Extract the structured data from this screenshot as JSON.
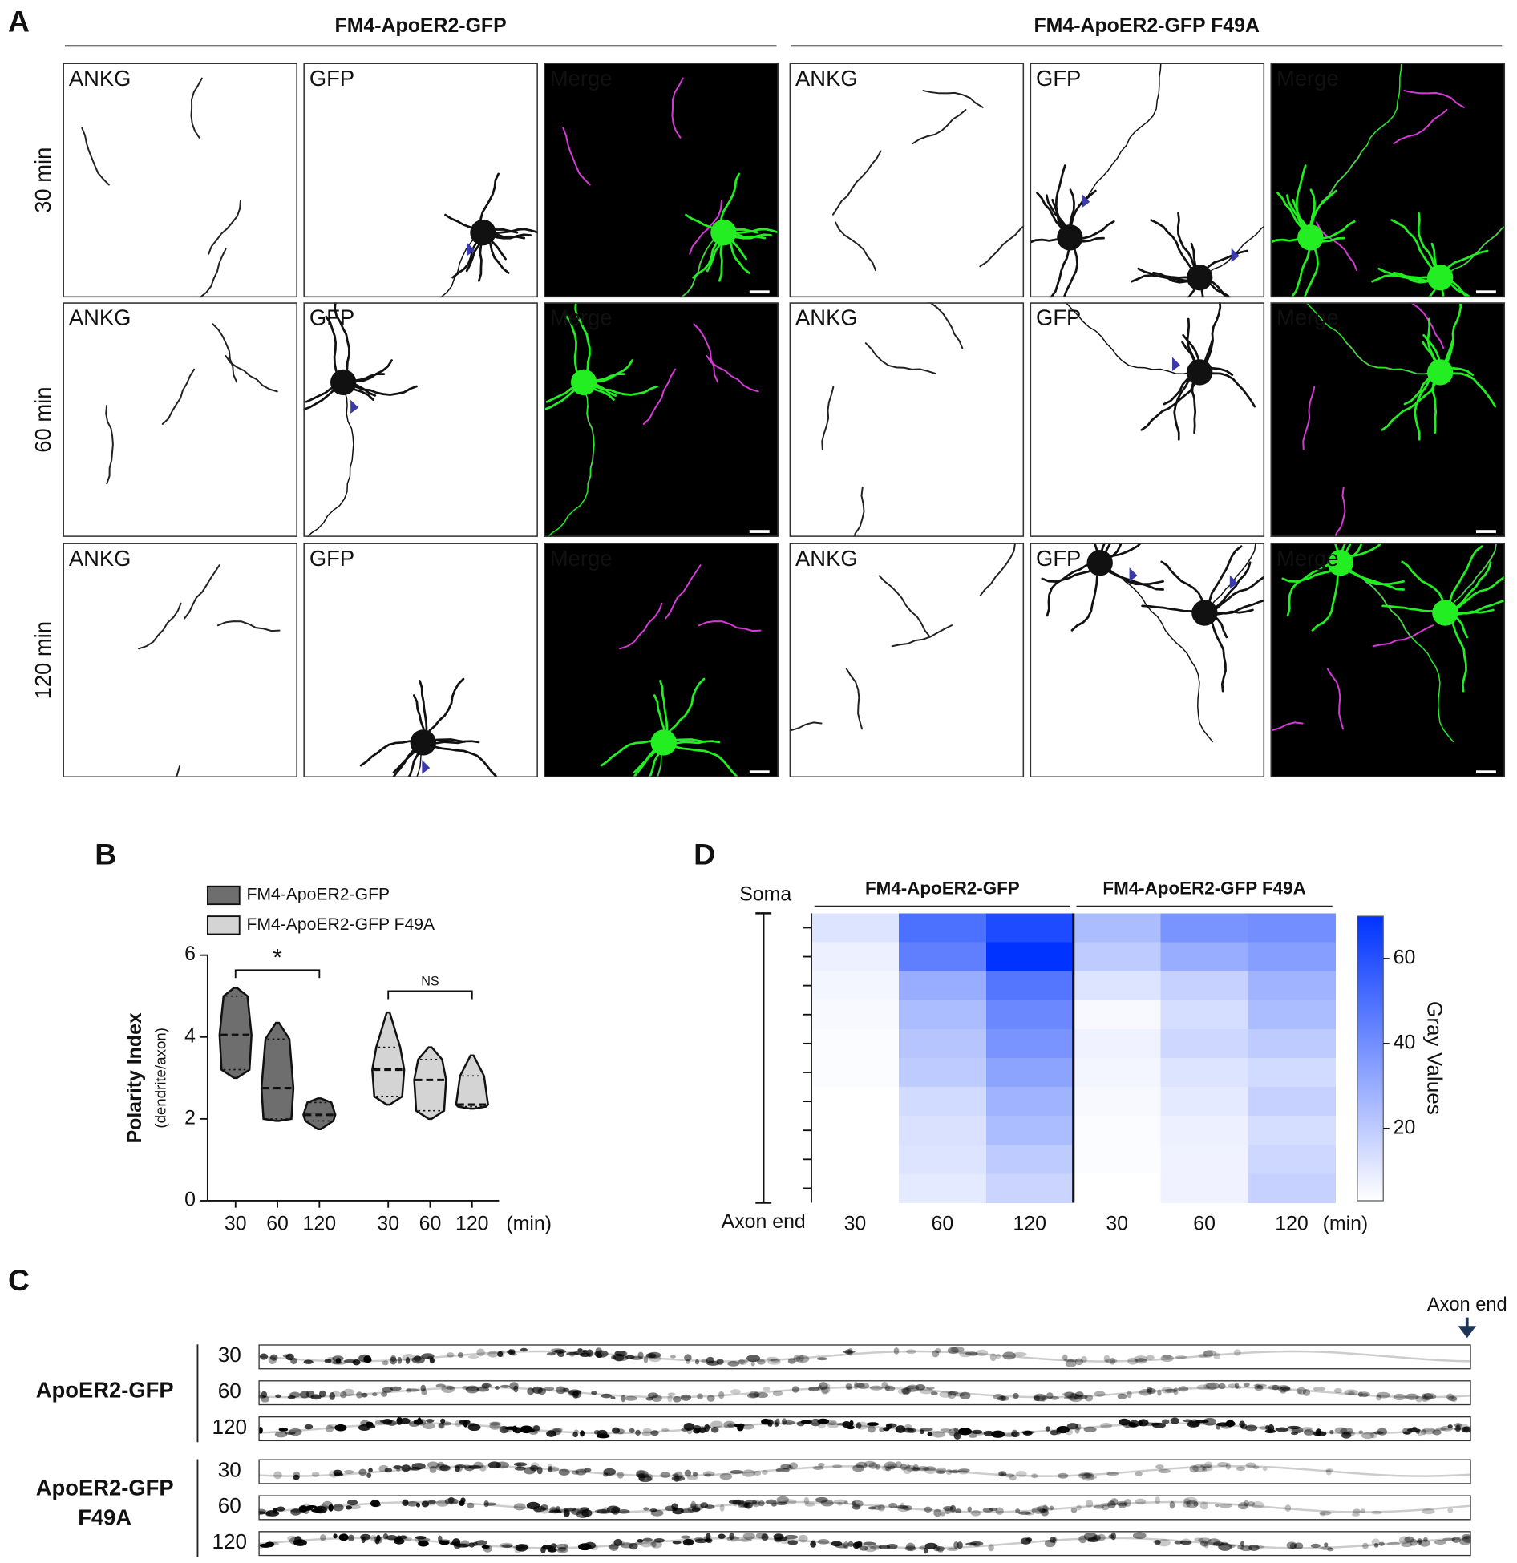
{
  "figure": {
    "panel_a": {
      "label": "A",
      "groups": [
        "FM4-ApoER2-GFP",
        "FM4-ApoER2-GFP F49A"
      ],
      "channels": [
        "ANKG",
        "GFP",
        "Merge"
      ],
      "rows": [
        "30 min",
        "60 min",
        "120 min"
      ]
    },
    "panel_b": {
      "label": "B"
    },
    "panel_c": {
      "label": "C",
      "axon_end": "Axon end",
      "groups": [
        "ApoER2-GFP",
        "ApoER2-GFP F49A"
      ],
      "rows": [
        "30",
        "60",
        "120"
      ]
    },
    "panel_d": {
      "label": "D"
    }
  },
  "chart_data": [
    {
      "type": "violin",
      "categories": [
        "30",
        "60",
        "120"
      ],
      "x_unit": "(min)",
      "ylabel": "Polarity Index",
      "ylabel_sub": "(dendrite/axon)",
      "ylim": [
        0,
        6
      ],
      "yticks": [
        0,
        2,
        4,
        6
      ],
      "series": [
        {
          "name": "FM4-ApoER2-GFP",
          "color": "#6e6e6e",
          "min": [
            3.0,
            1.95,
            1.75
          ],
          "q1": [
            3.2,
            2.0,
            1.95
          ],
          "median": [
            4.05,
            2.75,
            2.1
          ],
          "q3": [
            5.0,
            3.95,
            2.4
          ],
          "max": [
            5.2,
            4.35,
            2.5
          ]
        },
        {
          "name": "FM4-ApoER2-GFP F49A",
          "color": "#d4d4d4",
          "min": [
            2.35,
            2.0,
            2.25
          ],
          "q1": [
            2.55,
            2.2,
            2.3
          ],
          "median": [
            3.2,
            2.95,
            2.35
          ],
          "q3": [
            3.75,
            3.45,
            3.05
          ],
          "max": [
            4.6,
            3.75,
            3.55
          ]
        }
      ],
      "annotations": [
        "*",
        "NS"
      ]
    },
    {
      "type": "heatmap",
      "groups": [
        "FM4-ApoER2-GFP",
        "FM4-ApoER2-GFP F49A"
      ],
      "categories": [
        "30",
        "60",
        "120",
        "30",
        "60",
        "120"
      ],
      "x_unit": "(min)",
      "top_label": "Soma",
      "bottom_label": "Axon end",
      "z": [
        [
          12,
          8,
          6,
          5,
          4,
          4,
          3,
          3,
          2,
          2
        ],
        [
          50,
          45,
          30,
          25,
          22,
          20,
          15,
          13,
          12,
          10
        ],
        [
          62,
          70,
          48,
          42,
          38,
          33,
          28,
          25,
          20,
          17
        ],
        [
          25,
          20,
          12,
          5,
          7,
          6,
          5,
          4,
          4,
          3
        ],
        [
          38,
          30,
          18,
          14,
          16,
          12,
          10,
          8,
          7,
          7
        ],
        [
          40,
          35,
          28,
          25,
          20,
          15,
          18,
          14,
          16,
          18
        ]
      ],
      "colorbar_label": "Gray Values",
      "clim": [
        3,
        70
      ],
      "cticks": [
        20,
        40,
        60
      ],
      "colormap": [
        "#ffffff",
        "#0033ff"
      ]
    }
  ]
}
